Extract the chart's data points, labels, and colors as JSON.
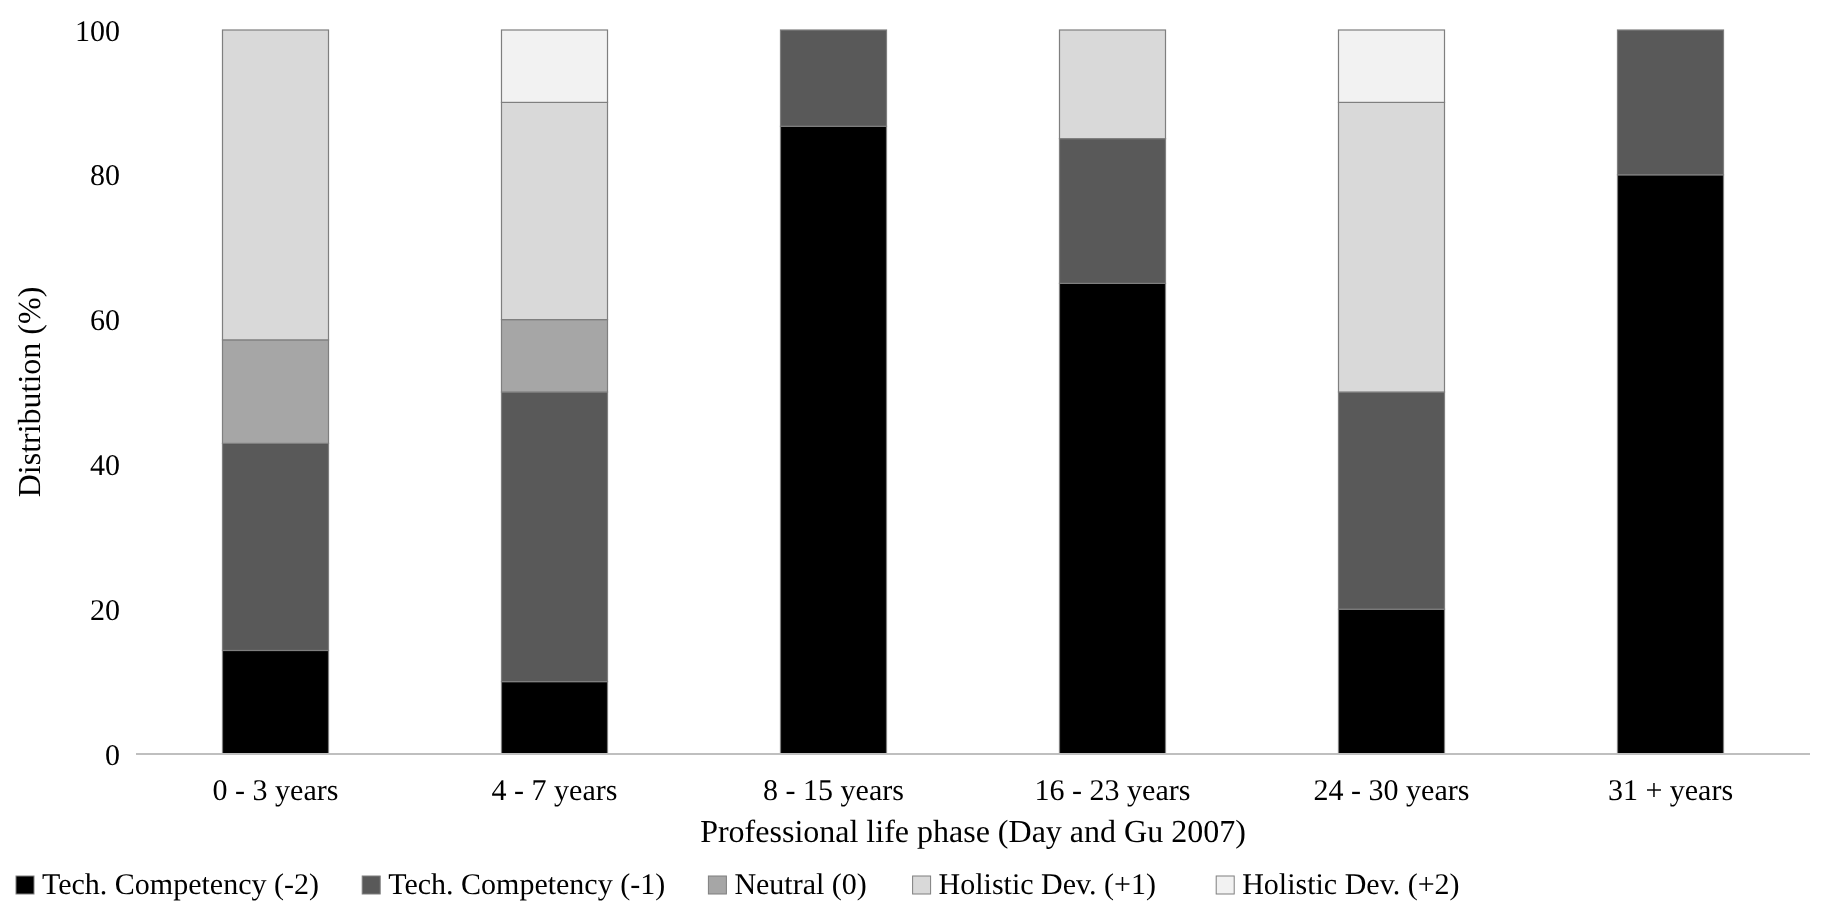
{
  "chart_data": {
    "type": "bar",
    "stacked": true,
    "xlabel": "Professional life phase (Day and Gu 2007)",
    "ylabel": "Distribution (%)",
    "categories": [
      "0 - 3 years",
      "4 - 7 years",
      "8 - 15 years",
      "16 - 23 years",
      "24 - 30 years",
      "31 + years"
    ],
    "series": [
      {
        "name": "Tech. Competency (-2)",
        "color": "#000000",
        "values": [
          14.3,
          10,
          86.7,
          65,
          20,
          80
        ]
      },
      {
        "name": "Tech. Competency (-1)",
        "color": "#595959",
        "values": [
          28.6,
          40,
          13.3,
          20,
          30,
          20
        ]
      },
      {
        "name": "Neutral (0)",
        "color": "#a6a6a6",
        "values": [
          14.3,
          10,
          0,
          0,
          0,
          0
        ]
      },
      {
        "name": "Holistic Dev. (+1)",
        "color": "#d9d9d9",
        "values": [
          42.8,
          30,
          0,
          15,
          40,
          0
        ]
      },
      {
        "name": "Holistic Dev. (+2)",
        "color": "#f2f2f2",
        "values": [
          0,
          10,
          0,
          0,
          10,
          0
        ]
      }
    ],
    "ylim": [
      0,
      100
    ],
    "yticks": [
      0,
      20,
      40,
      60,
      80,
      100
    ],
    "grid": false,
    "legend": "bottom"
  }
}
